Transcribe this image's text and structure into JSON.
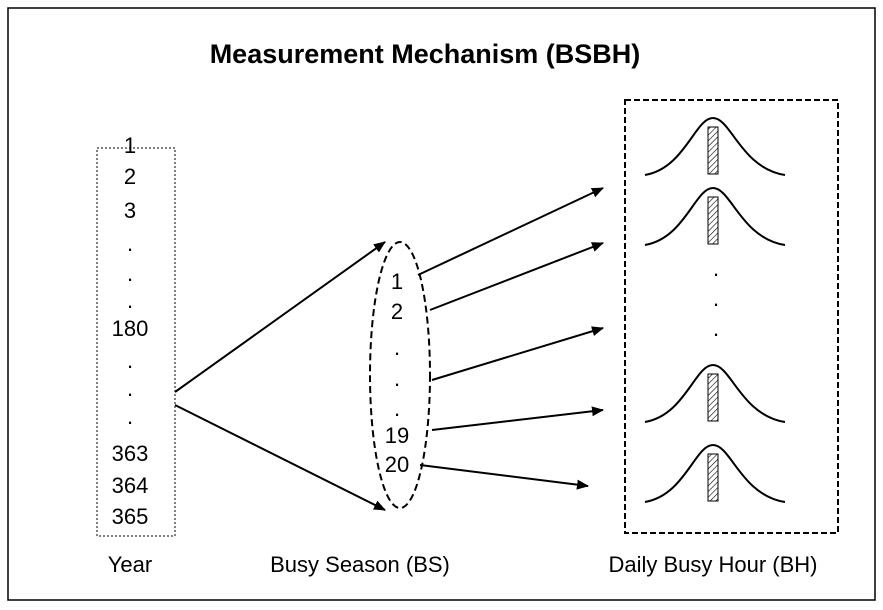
{
  "title": "Measurement Mechanism (BSBH)",
  "year": {
    "items": [
      "1",
      "2",
      "3",
      ".",
      ".",
      ".",
      "180",
      ".",
      ".",
      ".",
      "363",
      "364",
      "365"
    ],
    "label": "Year"
  },
  "busy_season": {
    "items": [
      "1",
      "2",
      ".",
      ".",
      ".",
      "19",
      "20"
    ],
    "label": "Busy Season (BS)"
  },
  "daily_busy_hour": {
    "dots": [
      ".",
      ".",
      "."
    ],
    "label": "Daily Busy Hour (BH)"
  }
}
